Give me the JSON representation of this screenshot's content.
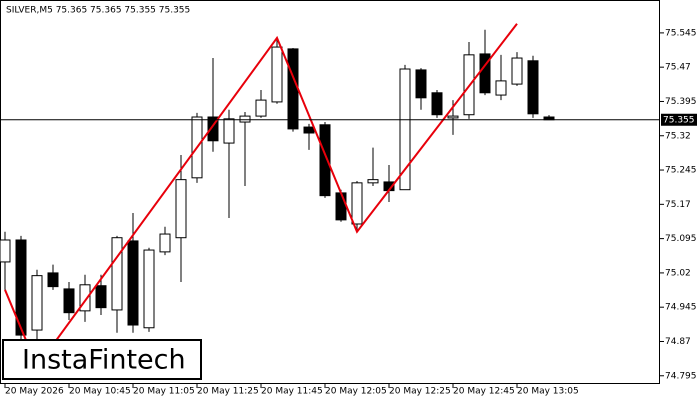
{
  "chart_data": {
    "type": "candlestick",
    "title": "SILVER,M5  75.365 75.365 75.355 75.355",
    "logo": "InstaFintech",
    "categories": [
      "20 May 2026",
      null,
      null,
      null,
      "20 May 10:45",
      null,
      null,
      null,
      "20 May 11:05",
      null,
      null,
      null,
      "20 May 11:25",
      null,
      null,
      null,
      "20 May 11:45",
      null,
      null,
      null,
      "20 May 12:05",
      null,
      null,
      null,
      "20 May 12:25",
      null,
      null,
      null,
      "20 May 12:45",
      null,
      null,
      null,
      "20 May 13:05",
      null,
      null
    ],
    "open": [
      75.044,
      75.092,
      74.895,
      75.02,
      74.985,
      74.937,
      74.992,
      74.939,
      75.09,
      74.9,
      75.066,
      75.097,
      75.228,
      75.361,
      75.304,
      75.35,
      75.363,
      75.394,
      75.51,
      75.339,
      75.344,
      75.195,
      75.127,
      75.217,
      75.219,
      75.202,
      75.464,
      75.414,
      75.359,
      75.366,
      75.499,
      75.409,
      75.433,
      75.484,
      75.361
    ],
    "high": [
      75.11,
      75.101,
      75.027,
      75.038,
      75.0,
      75.016,
      75.016,
      75.101,
      75.151,
      75.075,
      75.121,
      75.278,
      75.37,
      75.49,
      75.377,
      75.372,
      75.42,
      75.534,
      75.512,
      75.346,
      75.35,
      75.202,
      75.221,
      75.294,
      75.256,
      75.475,
      75.468,
      75.42,
      75.398,
      75.525,
      75.552,
      75.497,
      75.503,
      75.495,
      75.365
    ],
    "low": [
      74.983,
      74.862,
      74.862,
      74.983,
      74.917,
      74.913,
      74.928,
      74.889,
      74.889,
      74.891,
      75.059,
      75.0,
      75.217,
      75.285,
      75.14,
      75.21,
      75.359,
      75.39,
      75.329,
      75.289,
      75.184,
      75.132,
      75.114,
      75.21,
      75.175,
      75.202,
      75.377,
      75.359,
      75.322,
      75.357,
      75.409,
      75.398,
      75.429,
      75.359,
      75.355
    ],
    "close": [
      75.092,
      74.884,
      75.014,
      74.99,
      74.933,
      74.994,
      74.944,
      75.097,
      74.906,
      75.07,
      75.105,
      75.224,
      75.361,
      75.309,
      75.357,
      75.363,
      75.398,
      75.514,
      75.335,
      75.326,
      75.189,
      75.136,
      75.217,
      75.224,
      75.2,
      75.466,
      75.403,
      75.366,
      75.363,
      75.497,
      75.414,
      75.44,
      75.49,
      75.368,
      75.355
    ],
    "up_color": "#ffffff",
    "down_color": "#000000",
    "current_price": {
      "value": 75.355,
      "label": "75.355"
    },
    "pattern": {
      "color": "#e8000b",
      "x": [
        0,
        2,
        17,
        22,
        32
      ],
      "values": [
        74.983,
        74.815,
        75.534,
        75.11,
        75.565
      ]
    },
    "ylim": [
      74.777,
      75.606
    ],
    "yticks": [
      75.545,
      75.47,
      75.395,
      75.32,
      75.245,
      75.17,
      75.095,
      75.02,
      74.945,
      74.87,
      74.795
    ]
  }
}
